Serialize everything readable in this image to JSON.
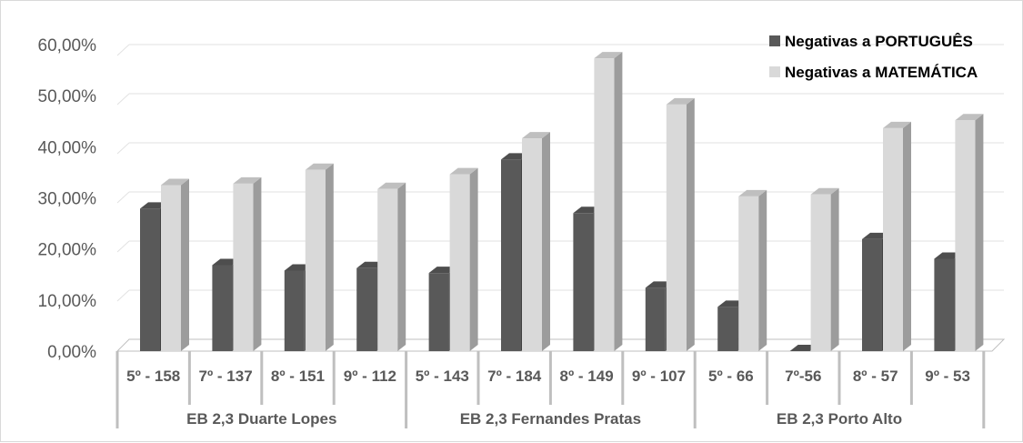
{
  "chart_data": {
    "type": "bar",
    "style": "3d-clustered-column",
    "title": "",
    "ylim": [
      0,
      60
    ],
    "y_ticks": [
      "0,00%",
      "10,00%",
      "20,00%",
      "30,00%",
      "40,00%",
      "50,00%",
      "60,00%"
    ],
    "grid": true,
    "legend_position": "top-right",
    "groups": [
      {
        "label": "EB 2,3 Duarte Lopes",
        "categories": [
          "5º - 158",
          "7º - 137",
          "8º - 151",
          "9º - 112"
        ]
      },
      {
        "label": "EB 2,3 Fernandes Pratas",
        "categories": [
          "5º - 143",
          "7º - 184",
          "8º - 149",
          "9º - 107"
        ]
      },
      {
        "label": "EB 2,3 Porto Alto",
        "categories": [
          "5º - 66",
          "7º-56",
          "8º - 57",
          "9º - 53"
        ]
      }
    ],
    "categories": [
      "5º - 158",
      "7º - 137",
      "8º - 151",
      "9º - 112",
      "5º - 143",
      "7º - 184",
      "8º - 149",
      "9º - 107",
      "5º - 66",
      "7º-56",
      "8º - 57",
      "9º - 53"
    ],
    "series": [
      {
        "name": "Negativas a PORTUGUÊS",
        "color": "#595959",
        "values": [
          29.0,
          17.5,
          16.4,
          16.9,
          15.9,
          39.0,
          28.1,
          12.9,
          9.0,
          0.0,
          22.8,
          18.8
        ]
      },
      {
        "name": "Negativas a MATEMÁTICA",
        "color": "#d9d9d9",
        "values": [
          33.8,
          34.1,
          36.9,
          33.0,
          36.0,
          43.3,
          59.6,
          50.2,
          31.5,
          31.9,
          45.4,
          47.0
        ]
      }
    ]
  }
}
